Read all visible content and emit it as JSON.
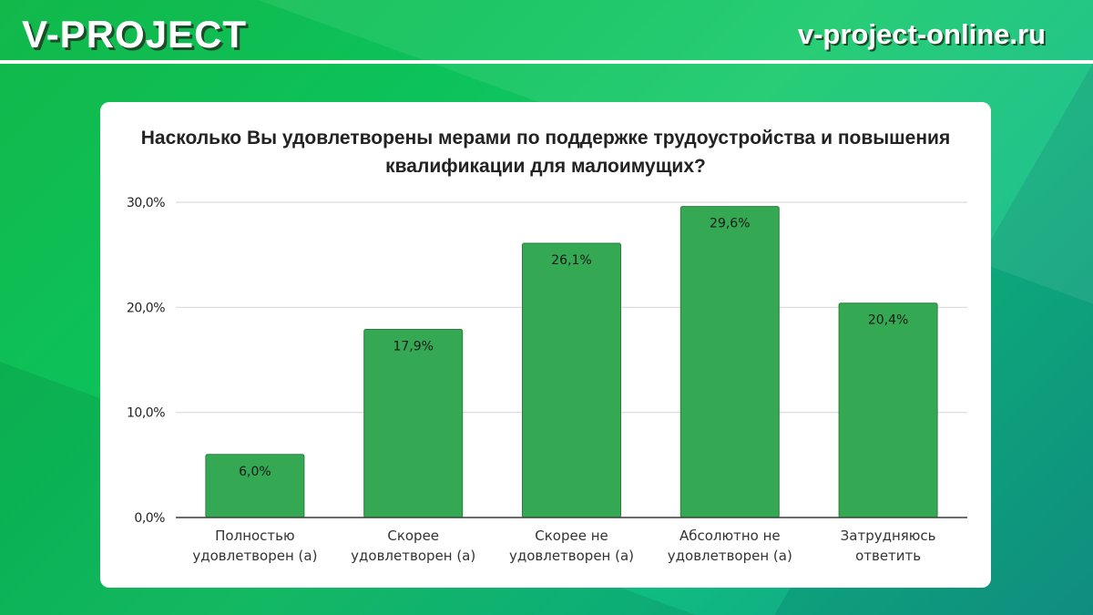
{
  "header": {
    "brand": "V-PROJECT",
    "site": "v-project-online.ru"
  },
  "chart_data": {
    "type": "bar",
    "title": "Насколько Вы удовлетворены мерами по поддержке трудоустройства и повышения квалификации для малоимущих?",
    "categories": [
      [
        "Полностью",
        "удовлетворен (а)"
      ],
      [
        "Скорее",
        "удовлетворен (а)"
      ],
      [
        "Скорее не",
        "удовлетворен (а)"
      ],
      [
        "Абсолютно не",
        "удовлетворен (а)"
      ],
      [
        "Затрудняюсь",
        "ответить"
      ]
    ],
    "values": [
      6.0,
      17.9,
      26.1,
      29.6,
      20.4
    ],
    "data_labels": [
      "6,0%",
      "17,9%",
      "26,1%",
      "29,6%",
      "20,4%"
    ],
    "yticks": [
      0,
      10,
      20,
      30
    ],
    "ytick_labels": [
      "0,0%",
      "10,0%",
      "20,0%",
      "30,0%"
    ],
    "ylim": [
      0,
      30
    ],
    "grid": true,
    "bar_color": "#34a853",
    "xlabel": "",
    "ylabel": ""
  }
}
